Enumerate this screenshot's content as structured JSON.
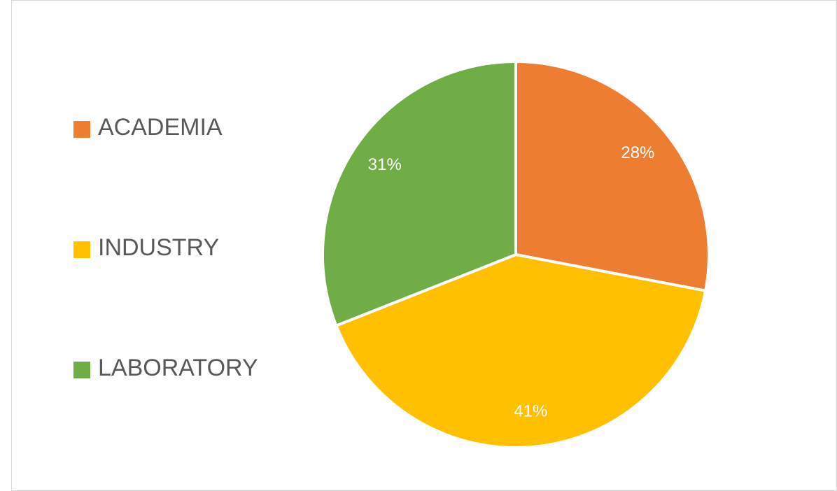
{
  "chart_data": {
    "type": "pie",
    "categories": [
      "ACADEMIA",
      "INDUSTRY",
      "LABORATORY"
    ],
    "values": [
      28,
      41,
      31
    ],
    "value_labels": [
      "28%",
      "41%",
      "31%"
    ],
    "colors": [
      "#ed7d31",
      "#ffc000",
      "#70ad47"
    ],
    "legend": "left"
  }
}
